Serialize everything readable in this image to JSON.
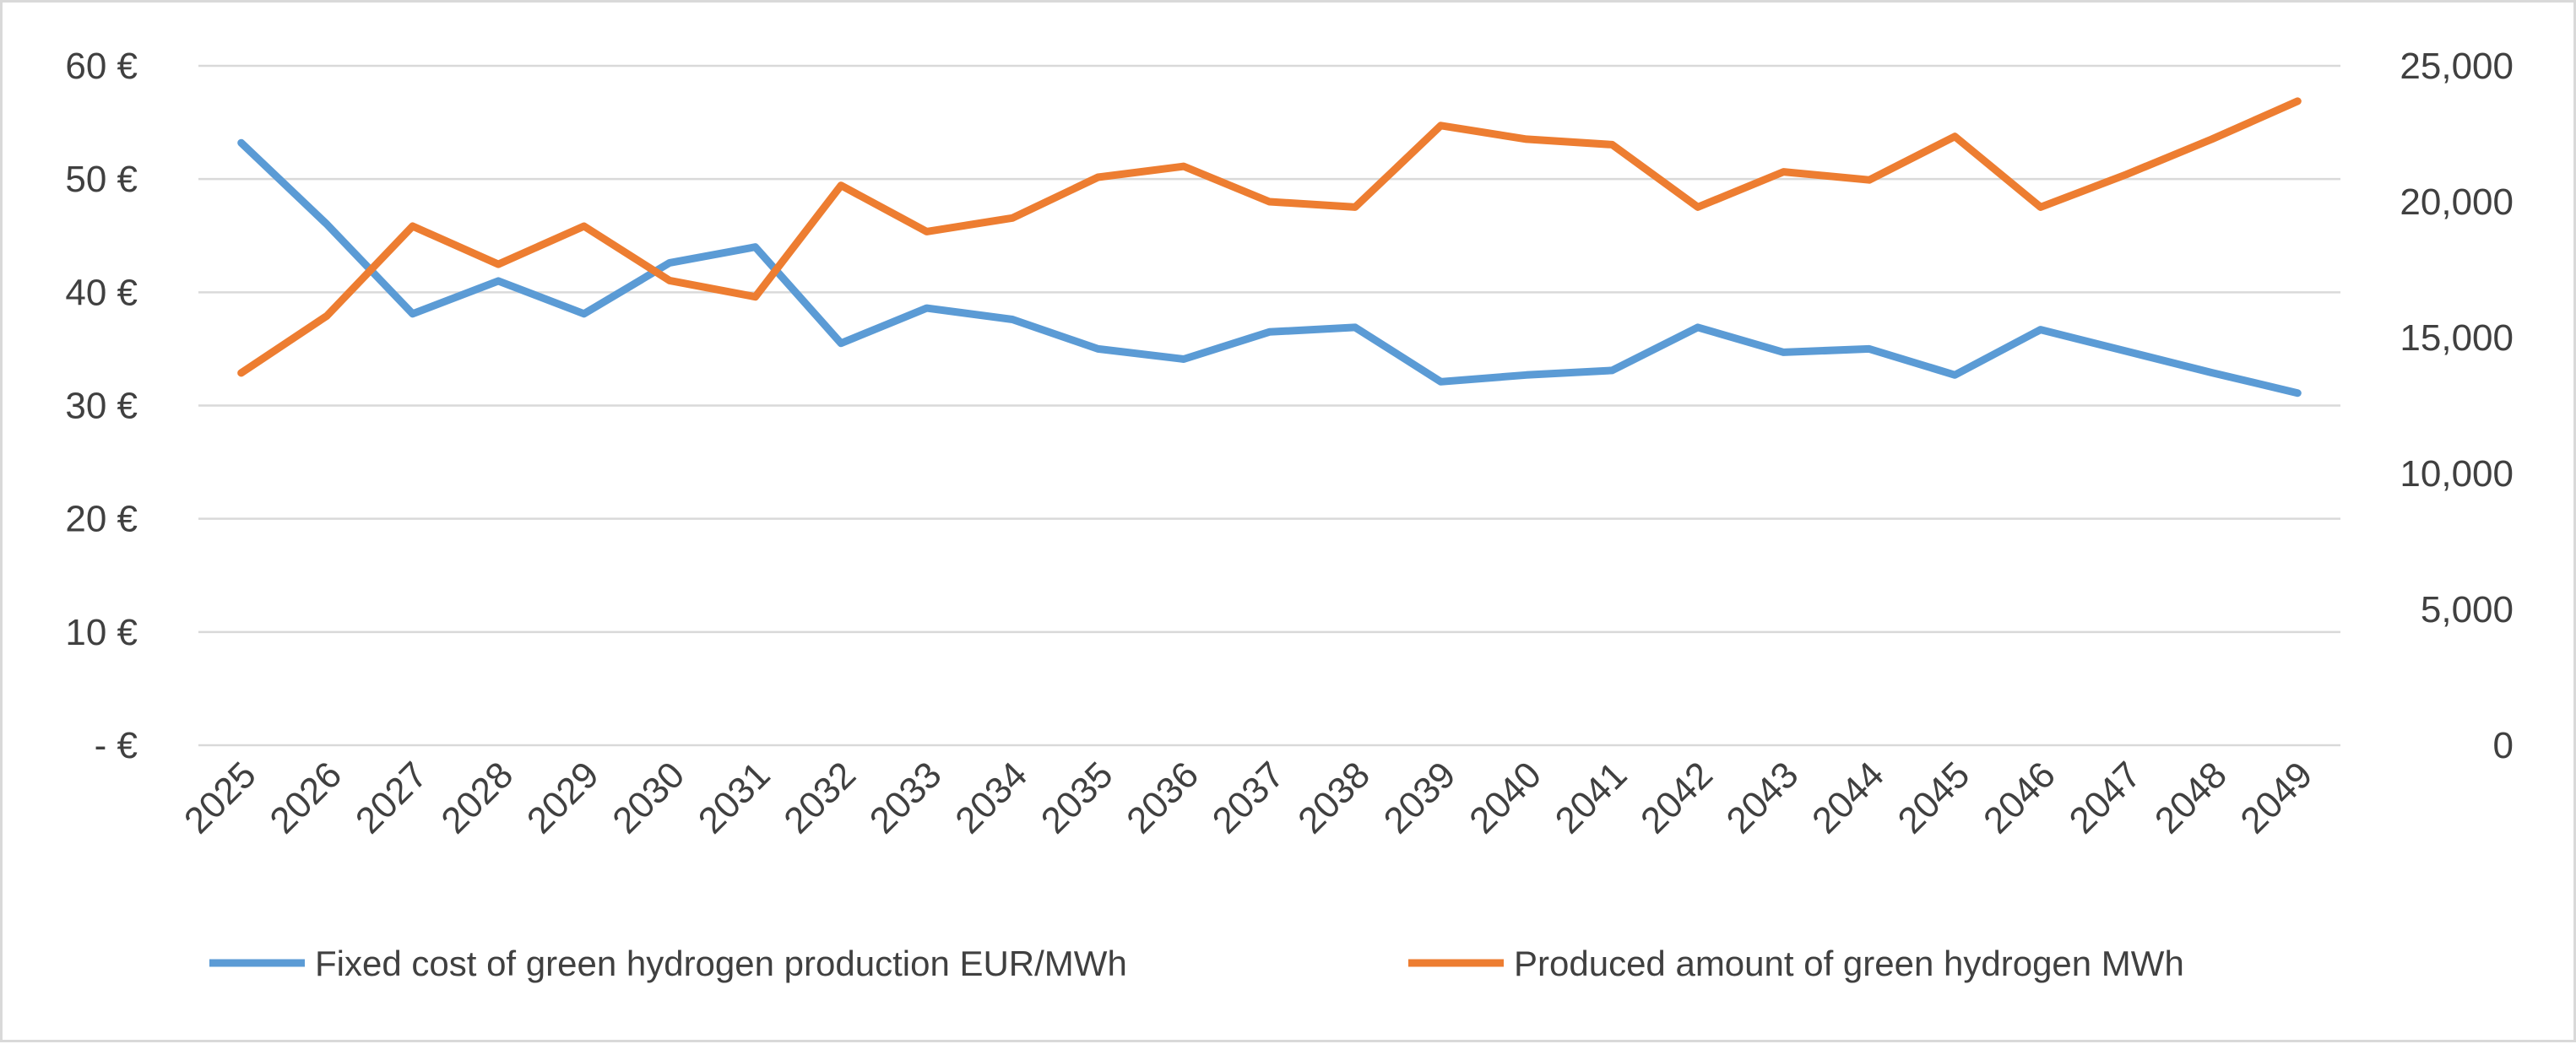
{
  "chart_data": {
    "type": "line",
    "title": "",
    "xlabel": "",
    "ylabel": "",
    "y2label": "",
    "x": [
      "2025",
      "2026",
      "2027",
      "2028",
      "2029",
      "2030",
      "2031",
      "2032",
      "2033",
      "2034",
      "2035",
      "2036",
      "2037",
      "2038",
      "2039",
      "2040",
      "2041",
      "2042",
      "2043",
      "2044",
      "2045",
      "2046",
      "2047",
      "2048",
      "2049"
    ],
    "ylim": [
      0,
      60
    ],
    "y2lim": [
      0,
      25000
    ],
    "y_ticks": [
      {
        "value": 0,
        "label": "- €"
      },
      {
        "value": 10,
        "label": "10 €"
      },
      {
        "value": 20,
        "label": "20 €"
      },
      {
        "value": 30,
        "label": "30 €"
      },
      {
        "value": 40,
        "label": "40 €"
      },
      {
        "value": 50,
        "label": "50 €"
      },
      {
        "value": 60,
        "label": "60 €"
      }
    ],
    "y2_ticks": [
      {
        "value": 0,
        "label": "0"
      },
      {
        "value": 5000,
        "label": "5,000"
      },
      {
        "value": 10000,
        "label": "10,000"
      },
      {
        "value": 15000,
        "label": "15,000"
      },
      {
        "value": 20000,
        "label": "20,000"
      },
      {
        "value": 25000,
        "label": "25,000"
      }
    ],
    "grid": true,
    "legend_position": "bottom",
    "series": [
      {
        "name": "Fixed cost of green hydrogen production EUR/MWh",
        "axis": "left",
        "color": "#5b9bd5",
        "values": [
          53.2,
          46.0,
          38.1,
          41.0,
          38.1,
          42.6,
          44.0,
          35.5,
          38.6,
          37.6,
          35.0,
          34.1,
          36.5,
          36.9,
          32.1,
          32.7,
          33.1,
          36.9,
          34.7,
          35.0,
          32.7,
          36.7,
          34.8,
          32.9,
          31.1
        ]
      },
      {
        "name": "Produced amount of green hydrogen MWh",
        "axis": "right",
        "color": "#ed7d31",
        "values": [
          13700,
          15800,
          19100,
          17700,
          19100,
          17100,
          16500,
          20600,
          18900,
          19400,
          20900,
          21300,
          20000,
          19800,
          22800,
          22300,
          22100,
          19800,
          21100,
          20800,
          22400,
          19800,
          21000,
          22300,
          23700
        ]
      }
    ]
  }
}
